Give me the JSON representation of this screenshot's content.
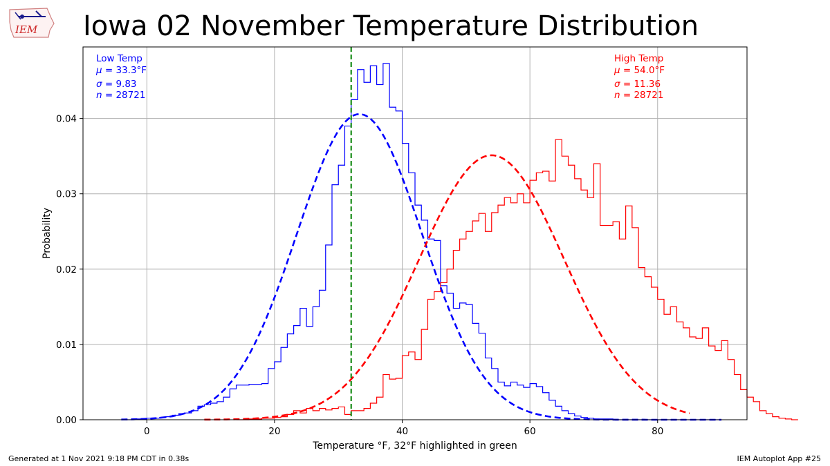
{
  "logo": {
    "icon": "iem-logo-icon",
    "text": "IEM"
  },
  "title": "Iowa 02 November Temperature Distribution",
  "footer": {
    "left": "Generated at 1 Nov 2021 9:18 PM CDT in 0.38s",
    "right": "IEM Autoplot App #25"
  },
  "annotations": {
    "low": {
      "label": "Low Temp",
      "mu": "= 33.3°F",
      "sigma": "= 9.83",
      "n": "= 28721",
      "color": "#0000ff"
    },
    "high": {
      "label": "High Temp",
      "mu": "= 54.0°F",
      "sigma": "= 11.36",
      "n": "= 28721",
      "color": "#ff0000"
    }
  },
  "chart_data": {
    "type": "line",
    "xlabel": "Temperature °F, 32°F highlighted in green",
    "ylabel": "Probability",
    "xlim": [
      -10,
      94
    ],
    "ylim": [
      0,
      0.0495
    ],
    "xticks": [
      0,
      20,
      40,
      60,
      80
    ],
    "yticks": [
      0.0,
      0.01,
      0.02,
      0.03,
      0.04
    ],
    "grid": true,
    "highlight_x": 32,
    "highlight_color": "#008000",
    "series": [
      {
        "name": "Low Temp",
        "kind": "histogram",
        "color": "#0000ff",
        "bin_start": -4,
        "bin_width": 1,
        "values": [
          0.0,
          0.0,
          0.0001,
          0.0001,
          0.0002,
          0.0002,
          0.0003,
          0.0004,
          0.0006,
          0.0008,
          0.0009,
          0.0012,
          0.0018,
          0.002,
          0.0022,
          0.0024,
          0.003,
          0.0041,
          0.0046,
          0.0046,
          0.0047,
          0.0047,
          0.0048,
          0.0068,
          0.0077,
          0.0096,
          0.0114,
          0.0125,
          0.0148,
          0.0124,
          0.015,
          0.0172,
          0.0232,
          0.0312,
          0.0338,
          0.039,
          0.0425,
          0.0465,
          0.0448,
          0.047,
          0.0445,
          0.0473,
          0.0415,
          0.041,
          0.0367,
          0.0328,
          0.0285,
          0.0265,
          0.024,
          0.0238,
          0.0178,
          0.0168,
          0.0148,
          0.0155,
          0.0153,
          0.0128,
          0.0115,
          0.0082,
          0.0068,
          0.005,
          0.0045,
          0.005,
          0.0046,
          0.0043,
          0.0048,
          0.0044,
          0.0036,
          0.0026,
          0.0018,
          0.0012,
          0.0008,
          0.0005,
          0.0003,
          0.0002,
          0.0001,
          0.0001,
          0.0001,
          0.0,
          0.0,
          0.0,
          0.0,
          0.0,
          0.0,
          0.0,
          0.0,
          0.0,
          0.0,
          0.0,
          0.0,
          0.0,
          0.0,
          0.0,
          0.0,
          0.0
        ]
      },
      {
        "name": "High Temp",
        "kind": "histogram",
        "color": "#ff0000",
        "bin_start": 14,
        "bin_width": 1,
        "values": [
          0.0,
          0.0,
          0.0001,
          0.0001,
          0.0002,
          0.0002,
          0.0003,
          0.0004,
          0.0007,
          0.0012,
          0.0009,
          0.0015,
          0.0012,
          0.0015,
          0.0013,
          0.0015,
          0.0017,
          0.0007,
          0.0012,
          0.0012,
          0.0015,
          0.0022,
          0.003,
          0.006,
          0.0054,
          0.0055,
          0.0085,
          0.009,
          0.008,
          0.012,
          0.016,
          0.017,
          0.0182,
          0.02,
          0.0225,
          0.024,
          0.025,
          0.0264,
          0.0274,
          0.025,
          0.0275,
          0.0285,
          0.0295,
          0.0288,
          0.03,
          0.0288,
          0.0318,
          0.0328,
          0.033,
          0.0317,
          0.0372,
          0.035,
          0.0338,
          0.032,
          0.0305,
          0.0295,
          0.034,
          0.0258,
          0.0258,
          0.0263,
          0.024,
          0.0284,
          0.0255,
          0.0202,
          0.019,
          0.0176,
          0.016,
          0.014,
          0.015,
          0.013,
          0.0122,
          0.011,
          0.0108,
          0.0122,
          0.0098,
          0.0092,
          0.0105,
          0.008,
          0.006,
          0.004,
          0.003,
          0.0024,
          0.0012,
          0.0008,
          0.0004,
          0.0002,
          0.0001,
          0.0
        ]
      },
      {
        "name": "Low Temp fit",
        "kind": "normal",
        "color": "#0000ff",
        "mean": 33.3,
        "std": 9.83,
        "range": [
          -4,
          90
        ]
      },
      {
        "name": "High Temp fit",
        "kind": "normal",
        "color": "#ff0000",
        "mean": 54.0,
        "std": 11.36,
        "range": [
          9,
          85
        ]
      }
    ]
  }
}
